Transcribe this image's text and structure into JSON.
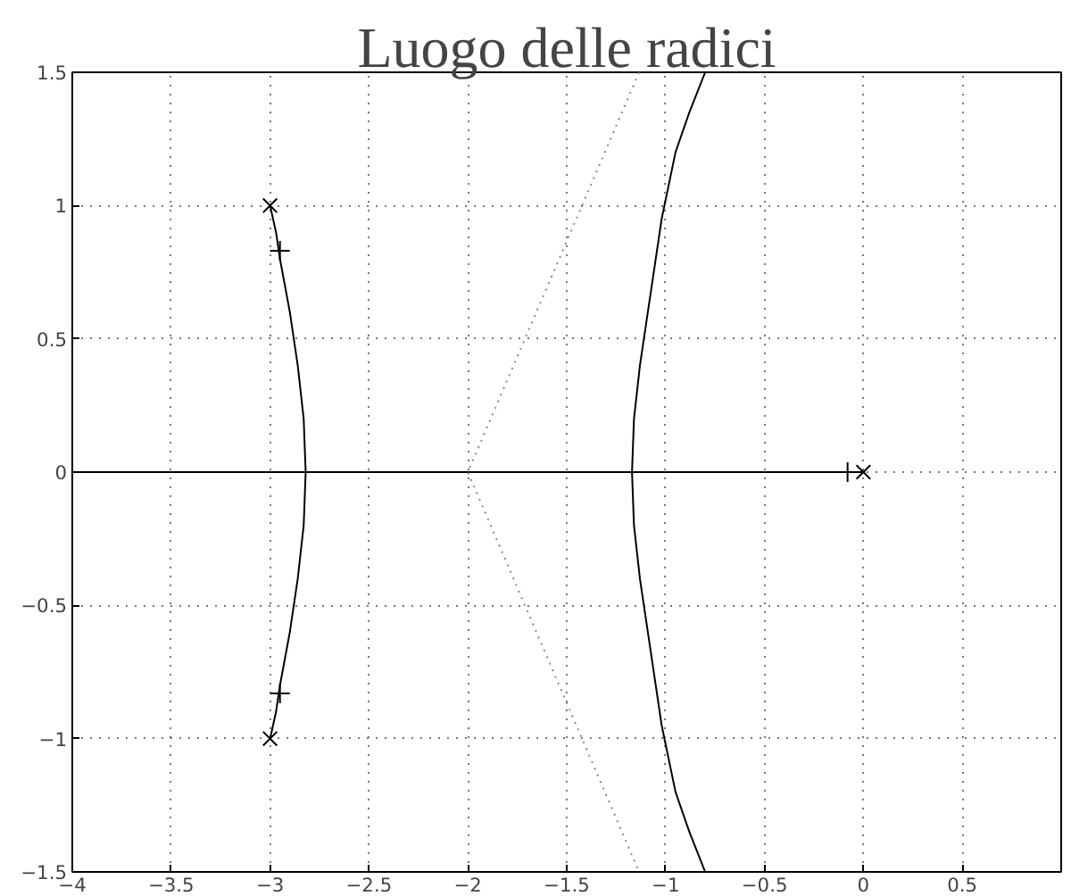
{
  "chart_data": {
    "type": "line",
    "title": "Luogo delle radici",
    "xlim": [
      -4,
      1
    ],
    "ylim": [
      -1.5,
      1.5
    ],
    "xticks": [
      {
        "value": -4,
        "label": "−4"
      },
      {
        "value": -3.5,
        "label": "−3.5"
      },
      {
        "value": -3,
        "label": "−3"
      },
      {
        "value": -2.5,
        "label": "−2.5"
      },
      {
        "value": -2,
        "label": "−2"
      },
      {
        "value": -1.5,
        "label": "−1.5"
      },
      {
        "value": -1,
        "label": "−1"
      },
      {
        "value": -0.5,
        "label": "−0.5"
      },
      0,
      0.5
    ],
    "yticks": [
      {
        "value": -1.5,
        "label": "−1.5"
      },
      {
        "value": -1,
        "label": "−1"
      },
      {
        "value": -0.5,
        "label": "−0.5"
      },
      0,
      0.5,
      1,
      1.5
    ],
    "grid": true,
    "series": [
      {
        "color": "#000000",
        "line_style": "solid",
        "x": [
          -3,
          -2.97,
          -2.95,
          -2.9,
          -2.86,
          -2.83,
          -2.82,
          -2.83,
          -2.86,
          -2.9,
          -2.95,
          -2.97,
          -3
        ],
        "values": [
          1,
          0.9,
          0.8,
          0.6,
          0.4,
          0.2,
          0,
          -0.2,
          -0.4,
          -0.6,
          -0.8,
          -0.9,
          -1
        ]
      },
      {
        "color": "#000000",
        "line_style": "solid",
        "x": [
          -4,
          0
        ],
        "values": [
          0,
          0
        ]
      },
      {
        "color": "#000000",
        "line_style": "solid",
        "x": [
          -0.8,
          -0.88,
          -0.95,
          -1.02,
          -1.05,
          -1.09,
          -1.13,
          -1.16,
          -1.17,
          -1.16,
          -1.13,
          -1.09,
          -1.05,
          -1.02,
          -0.95,
          -0.88,
          -0.8
        ],
        "values": [
          1.5,
          1.35,
          1.2,
          0.95,
          0.8,
          0.6,
          0.4,
          0.2,
          0,
          -0.2,
          -0.4,
          -0.6,
          -0.8,
          -0.95,
          -1.2,
          -1.35,
          -1.5
        ]
      },
      {
        "color": "#888888",
        "line_style": "dotted",
        "x": [
          -1.134,
          -2,
          -1.134
        ],
        "values": [
          1.5,
          0,
          -1.5
        ]
      },
      {
        "type": "scatter",
        "color": "#000000",
        "marker": "x",
        "x": [
          -3,
          -3,
          0
        ],
        "values": [
          1,
          -1,
          0
        ]
      },
      {
        "type": "scatter",
        "color": "#000000",
        "marker": "cross",
        "x": [
          -2.95,
          -2.95,
          -0.08
        ],
        "values": [
          0.83,
          -0.83,
          0
        ]
      }
    ]
  }
}
